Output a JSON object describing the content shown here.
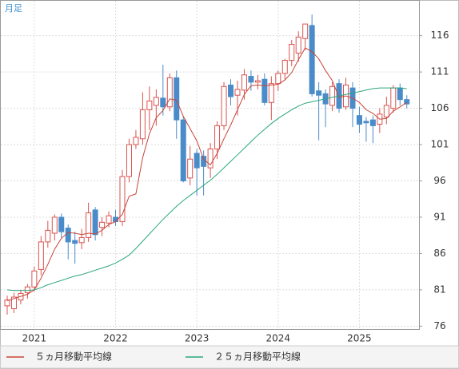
{
  "chart_data": {
    "type": "candlestick",
    "title": "月足",
    "categories": [
      null,
      null,
      null,
      null,
      "2021",
      null,
      null,
      null,
      null,
      null,
      null,
      null,
      null,
      null,
      null,
      null,
      "2022",
      null,
      null,
      null,
      null,
      null,
      null,
      null,
      null,
      null,
      null,
      null,
      "2023",
      null,
      null,
      null,
      null,
      null,
      null,
      null,
      null,
      null,
      null,
      null,
      "2024",
      null,
      null,
      null,
      null,
      null,
      null,
      null,
      null,
      null,
      null,
      null,
      "2025",
      null,
      null,
      null,
      null,
      null,
      null,
      null
    ],
    "open": [
      78.8,
      78.4,
      79.6,
      80.6,
      81.4,
      83.8,
      87.6,
      88.8,
      91.0,
      89.5,
      87.8,
      87.5,
      88.2,
      92.0,
      89.6,
      90.2,
      91.0,
      90.4,
      96.6,
      101.0,
      101.8,
      105.8,
      106.4,
      107.4,
      106.2,
      110.2,
      104.4,
      96.4,
      99.8,
      99.4,
      97.8,
      100.4,
      103.6,
      109.2,
      107.8,
      108.5,
      110.4,
      109.6,
      110.0,
      106.8,
      109.4,
      110.8,
      112.6,
      113.6,
      115.6,
      117.4,
      108.4,
      108.0,
      106.4,
      109.4,
      106.2,
      108.8,
      105.0,
      104.2,
      104.4,
      103.8,
      104.8,
      106.0,
      108.8,
      107.2
    ],
    "high": [
      80.2,
      80.6,
      81.0,
      81.8,
      84.2,
      88.4,
      90.5,
      91.4,
      91.5,
      90.0,
      89.0,
      89.4,
      93.0,
      92.4,
      91.0,
      91.8,
      92.0,
      97.5,
      101.8,
      103.0,
      108.2,
      109.0,
      108.6,
      112.0,
      110.8,
      111.2,
      104.8,
      100.8,
      100.4,
      100.2,
      101.2,
      104.2,
      109.6,
      110.0,
      109.8,
      111.4,
      111.2,
      110.6,
      110.8,
      110.4,
      111.2,
      112.8,
      115.4,
      116.6,
      117.6,
      118.9,
      109.6,
      108.6,
      109.6,
      110.0,
      110.2,
      109.6,
      106.2,
      104.8,
      105.0,
      106.0,
      107.6,
      109.2,
      109.4,
      107.8
    ],
    "low": [
      77.6,
      77.8,
      79.0,
      79.8,
      80.8,
      83.0,
      86.8,
      87.8,
      88.2,
      85.2,
      84.6,
      86.6,
      87.6,
      87.8,
      88.4,
      89.6,
      89.8,
      89.8,
      95.8,
      100.4,
      101.0,
      103.0,
      103.6,
      105.0,
      105.6,
      101.8,
      95.8,
      95.4,
      94.0,
      94.0,
      96.4,
      99.0,
      103.0,
      106.4,
      105.0,
      107.2,
      108.4,
      108.6,
      106.4,
      104.4,
      108.4,
      110.0,
      111.8,
      112.4,
      114.0,
      107.6,
      101.6,
      103.4,
      105.6,
      105.4,
      105.8,
      103.4,
      102.6,
      101.4,
      101.2,
      102.6,
      103.8,
      105.4,
      106.4,
      106.0
    ],
    "close": [
      79.6,
      80.0,
      80.5,
      81.4,
      83.6,
      87.6,
      89.2,
      91.0,
      89.0,
      87.6,
      87.4,
      88.2,
      91.6,
      88.6,
      90.3,
      91.2,
      90.4,
      96.6,
      101.0,
      102.0,
      105.8,
      107.0,
      107.5,
      106.2,
      110.2,
      104.4,
      96.0,
      99.0,
      97.8,
      98.0,
      100.4,
      103.6,
      109.0,
      107.6,
      108.6,
      110.6,
      109.6,
      109.8,
      106.8,
      109.4,
      110.8,
      112.6,
      114.8,
      115.8,
      117.6,
      108.0,
      107.8,
      106.6,
      109.0,
      106.0,
      109.2,
      106.0,
      103.8,
      104.0,
      103.6,
      105.2,
      106.4,
      108.8,
      107.2,
      106.6
    ],
    "up_color": "#d9534f",
    "down_color": "#4a8cc9",
    "series": [
      {
        "name": "５ヵ月移動平均線",
        "color": "#c9453a",
        "values": [
          79.5,
          79.8,
          80.1,
          80.4,
          81.0,
          82.6,
          84.5,
          86.6,
          88.1,
          88.9,
          88.8,
          88.6,
          88.8,
          88.7,
          89.2,
          90.0,
          90.4,
          91.4,
          93.9,
          94.2,
          99.2,
          102.5,
          104.7,
          105.7,
          107.3,
          107.1,
          104.9,
          103.2,
          101.5,
          99.0,
          98.2,
          99.8,
          101.8,
          103.7,
          105.8,
          107.9,
          109.1,
          109.2,
          109.1,
          109.2,
          109.3,
          109.9,
          110.9,
          112.7,
          114.3,
          113.8,
          112.8,
          111.2,
          109.8,
          107.5,
          107.7,
          107.4,
          106.8,
          105.8,
          105.3,
          104.5,
          104.6,
          105.6,
          106.2,
          106.8
        ]
      },
      {
        "name": "２５ヵ月移動平均線",
        "color": "#2aa67a",
        "values": [
          81.0,
          80.9,
          80.9,
          80.9,
          81.0,
          81.3,
          81.7,
          82.0,
          82.3,
          82.6,
          82.9,
          83.1,
          83.4,
          83.7,
          84.0,
          84.3,
          84.7,
          85.2,
          85.8,
          86.7,
          87.7,
          88.7,
          89.7,
          90.7,
          91.6,
          92.5,
          93.3,
          94.0,
          94.7,
          95.4,
          96.1,
          96.9,
          97.8,
          98.7,
          99.6,
          100.5,
          101.4,
          102.3,
          103.1,
          103.9,
          104.6,
          105.2,
          105.8,
          106.3,
          106.7,
          106.9,
          107.1,
          107.3,
          107.5,
          107.7,
          107.9,
          108.1,
          108.3,
          108.5,
          108.7,
          108.8,
          108.8,
          108.8,
          108.8,
          108.7
        ]
      }
    ],
    "ylim": [
      75.6,
      120.8
    ],
    "yticks": [
      76,
      81,
      86,
      91,
      96,
      101,
      106,
      111,
      116
    ],
    "grid": true
  }
}
